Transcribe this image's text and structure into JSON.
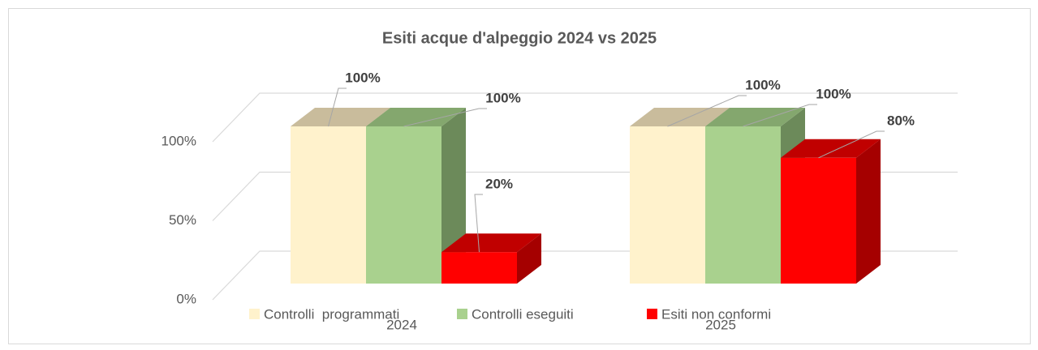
{
  "chart_data": {
    "type": "bar3d",
    "title": "Esiti acque d'alpeggio 2024 vs 2025",
    "categories": [
      "2024",
      "2025"
    ],
    "series": [
      {
        "name": "Controlli  programmati",
        "color": "#FFF2CC",
        "top_color": "#C9BC9C",
        "side_color": "#BFB291",
        "values": [
          100,
          100
        ],
        "value_labels": [
          "100%",
          "100%"
        ]
      },
      {
        "name": "Controlli eseguiti",
        "color": "#A9D18E",
        "top_color": "#84A76E",
        "side_color": "#6C8A5A",
        "values": [
          100,
          100
        ],
        "value_labels": [
          "100%",
          "100%"
        ]
      },
      {
        "name": "Esiti non conformi",
        "color": "#FF0000",
        "top_color": "#C00000",
        "side_color": "#A50000",
        "values": [
          20,
          80
        ],
        "value_labels": [
          "20%",
          "80%"
        ]
      }
    ],
    "ylim": [
      0,
      100
    ],
    "yticks": [
      {
        "value": 0,
        "label": "0%"
      },
      {
        "value": 50,
        "label": "50%"
      },
      {
        "value": 100,
        "label": "100%"
      }
    ],
    "grid": true,
    "legend": "bottom"
  }
}
